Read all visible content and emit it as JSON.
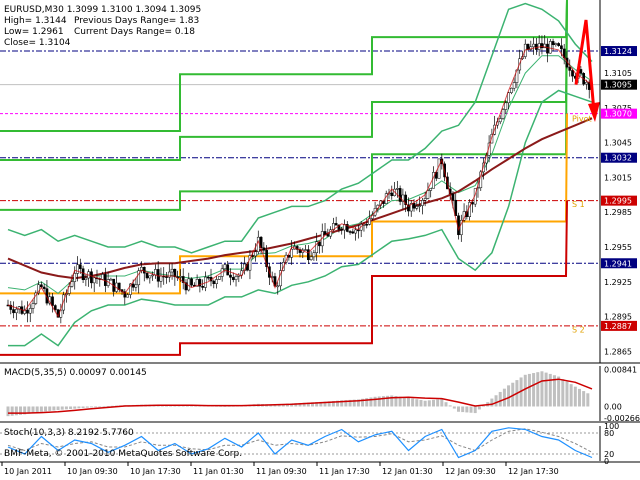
{
  "chart_data": [
    {
      "type": "line",
      "panel": "price",
      "symbol_line": "EURUSD,M30  1.3099 1.3100 1.3094 1.3095",
      "info": {
        "high": "High= 1.3144",
        "low": "Low= 1.2961",
        "close": "Close= 1.3104",
        "prev_range": "Previous Days Range= 1.83",
        "curr_range": "Current Days Range= 0.18"
      },
      "y_ticks": [
        "1.3124",
        "1.3105",
        "1.3095",
        "1.3075",
        "1.3070",
        "1.3045",
        "1.3032",
        "1.3015",
        "1.2995",
        "1.2985",
        "1.2955",
        "1.2941",
        "1.2925",
        "1.2895",
        "1.2887",
        "1.2865"
      ],
      "ylim": [
        1.2855,
        1.3168
      ],
      "levels": [
        {
          "value": 1.3124,
          "color": "#000080",
          "style": "dashdot",
          "tag": "1.3124",
          "box_fill": "#000080",
          "box_text": "#ffffff"
        },
        {
          "value": 1.3095,
          "color": "#c0c0c0",
          "style": "solid",
          "tag": "1.3095",
          "box_fill": "#000000",
          "box_text": "#ffffff"
        },
        {
          "value": 1.307,
          "color": "#ff00ff",
          "style": "dashed",
          "tag": "1.3070",
          "box_fill": "#ff00ff",
          "box_text": "#ffffff"
        },
        {
          "value": 1.3032,
          "color": "#000080",
          "style": "dashdot",
          "tag": "1.3032",
          "box_fill": "#000080",
          "box_text": "#ffffff"
        },
        {
          "value": 1.2995,
          "color": "#cc0000",
          "style": "dashdot",
          "tag": "1.2995",
          "box_fill": "#cc0000",
          "box_text": "#ffffff"
        },
        {
          "value": 1.2941,
          "color": "#000080",
          "style": "dashdot",
          "tag": "1.2941",
          "box_fill": "#000080",
          "box_text": "#ffffff"
        },
        {
          "value": 1.2887,
          "color": "#cc0000",
          "style": "dashdot",
          "tag": "1.2887",
          "box_fill": "#cc0000",
          "box_text": "#ffffff"
        }
      ],
      "pivot_labels": [
        {
          "text": "Pivot",
          "value": 1.3066,
          "color": "#e0a000"
        },
        {
          "text": "S 1",
          "value": 1.2992,
          "color": "#e0a000"
        },
        {
          "text": "S 2",
          "value": 1.2884,
          "color": "#e0a000"
        }
      ],
      "step_series": [
        {
          "color": "#33bb33",
          "segments": [
            [
              0,
              180,
              1.3055
            ],
            [
              180,
              372,
              1.3104
            ],
            [
              372,
              566,
              1.3136
            ]
          ]
        },
        {
          "color": "#33bb33",
          "segments": [
            [
              0,
              180,
              1.303
            ],
            [
              180,
              372,
              1.305
            ],
            [
              372,
              566,
              1.308
            ]
          ]
        },
        {
          "color": "#33bb33",
          "segments": [
            [
              0,
              180,
              1.2987
            ],
            [
              180,
              372,
              1.3003
            ],
            [
              372,
              566,
              1.3035
            ]
          ]
        },
        {
          "color": "#ffa500",
          "segments": [
            [
              0,
              180,
              1.2915
            ],
            [
              180,
              372,
              1.2947
            ],
            [
              372,
              566,
              1.2977
            ]
          ]
        },
        {
          "color": "#cc0000",
          "segments": [
            [
              0,
              180,
              1.2862
            ],
            [
              180,
              372,
              1.2872
            ],
            [
              372,
              566,
              1.293
            ]
          ]
        }
      ],
      "ma": [
        1.2945,
        1.2939,
        1.2933,
        1.293,
        1.2928,
        1.293,
        1.2933,
        1.2937,
        1.294,
        1.2941,
        1.2941,
        1.2943,
        1.2945,
        1.2948,
        1.295,
        1.2952,
        1.2955,
        1.2958,
        1.2962,
        1.2966,
        1.297,
        1.2974,
        1.2979,
        1.2984,
        1.2989,
        1.2993,
        1.2997,
        1.3003,
        1.3012,
        1.3022,
        1.3031,
        1.304,
        1.3048,
        1.3054,
        1.306,
        1.3066
      ],
      "price": [
        1.2905,
        1.29,
        1.292,
        1.2895,
        1.2935,
        1.293,
        1.2925,
        1.2915,
        1.2935,
        1.293,
        1.293,
        1.292,
        1.2925,
        1.2935,
        1.293,
        1.296,
        1.292,
        1.2955,
        1.295,
        1.2965,
        1.2975,
        1.297,
        1.2985,
        1.3005,
        1.299,
        1.3,
        1.303,
        1.297,
        1.3,
        1.305,
        1.309,
        1.3125,
        1.3128,
        1.3125,
        1.3105,
        1.3095
      ],
      "bb_upper": [
        1.297,
        1.2965,
        1.297,
        1.296,
        1.2965,
        1.296,
        1.2955,
        1.2955,
        1.296,
        1.2955,
        1.2955,
        1.295,
        1.2955,
        1.296,
        1.296,
        1.298,
        1.2985,
        1.299,
        1.299,
        1.2995,
        1.3005,
        1.301,
        1.302,
        1.303,
        1.303,
        1.304,
        1.3055,
        1.306,
        1.308,
        1.312,
        1.316,
        1.3165,
        1.316,
        1.315,
        1.313,
        1.3115
      ],
      "bb_lower": [
        1.287,
        1.287,
        1.288,
        1.287,
        1.289,
        1.29,
        1.2905,
        1.2905,
        1.291,
        1.2908,
        1.2905,
        1.2905,
        1.2905,
        1.2912,
        1.2912,
        1.2918,
        1.2915,
        1.2922,
        1.2925,
        1.293,
        1.2938,
        1.294,
        1.295,
        1.296,
        1.2962,
        1.2965,
        1.297,
        1.2945,
        1.2935,
        1.295,
        1.299,
        1.3045,
        1.308,
        1.309,
        1.3085,
        1.308
      ],
      "bb_mid": [
        1.292,
        1.2918,
        1.2925,
        1.2915,
        1.2928,
        1.293,
        1.293,
        1.293,
        1.2935,
        1.2932,
        1.293,
        1.2928,
        1.293,
        1.2936,
        1.2936,
        1.2949,
        1.295,
        1.2956,
        1.2958,
        1.2962,
        1.2972,
        1.2975,
        1.2985,
        1.2995,
        1.2996,
        1.3002,
        1.3012,
        1.3002,
        1.3008,
        1.3035,
        1.3075,
        1.3105,
        1.312,
        1.312,
        1.3108,
        1.3098
      ],
      "arrow_color": "#ff0000"
    },
    {
      "type": "bar",
      "panel": "macd",
      "label": "MACD(5,35,5) 0.00097 0.00145",
      "y_ticks": [
        "0.00841",
        "0.00",
        "-0.00266"
      ],
      "ylim": [
        -0.0033,
        0.0092
      ],
      "values": [
        -0.0022,
        -0.0018,
        -0.0012,
        -0.0008,
        -0.0005,
        -0.0002,
        0.0001,
        0.0003,
        0.0004,
        0.0004,
        0.0003,
        0.0002,
        0.0002,
        0.0001,
        0.0002,
        0.0006,
        0.0004,
        0.0007,
        0.0009,
        0.0011,
        0.0014,
        0.0016,
        0.0022,
        0.0025,
        0.002,
        0.0013,
        0.0017,
        -0.0012,
        -0.0015,
        0.0018,
        0.0048,
        0.0072,
        0.008,
        0.0068,
        0.0045,
        0.0025
      ],
      "signal": [
        -0.0015,
        -0.0015,
        -0.0014,
        -0.0012,
        -0.0009,
        -0.0005,
        -0.0002,
        0.0001,
        0.0002,
        0.0003,
        0.0003,
        0.0003,
        0.0002,
        0.0002,
        0.0002,
        0.0003,
        0.0004,
        0.0005,
        0.0007,
        0.0009,
        0.0011,
        0.0013,
        0.0016,
        0.002,
        0.0021,
        0.0019,
        0.0018,
        0.001,
        0.0001,
        0.0005,
        0.002,
        0.004,
        0.0058,
        0.0062,
        0.0055,
        0.004
      ],
      "bar_color": "#c0c0c0",
      "signal_color": "#cc0000"
    },
    {
      "type": "line",
      "panel": "stoch",
      "label": "Stoch(10,3,3) 8.2192 5.7760",
      "y_ticks": [
        "100",
        "80",
        "20",
        "0"
      ],
      "ylim": [
        0,
        100
      ],
      "main": [
        40,
        20,
        70,
        30,
        60,
        50,
        25,
        45,
        70,
        30,
        50,
        20,
        35,
        65,
        40,
        80,
        20,
        60,
        45,
        70,
        90,
        55,
        75,
        85,
        30,
        70,
        90,
        10,
        30,
        85,
        95,
        90,
        70,
        60,
        30,
        10
      ],
      "signal": [
        45,
        30,
        50,
        40,
        50,
        55,
        40,
        40,
        55,
        45,
        45,
        35,
        32,
        45,
        45,
        60,
        45,
        50,
        45,
        55,
        72,
        68,
        70,
        78,
        55,
        60,
        72,
        45,
        30,
        60,
        85,
        92,
        82,
        70,
        50,
        25
      ],
      "main_color": "#1e90ff",
      "signal_color": "#888888"
    }
  ],
  "x_axis": [
    "10 Jan 2011",
    "10 Jan 09:30",
    "10 Jan 17:30",
    "11 Jan 01:30",
    "11 Jan 09:30",
    "11 Jan 17:30",
    "12 Jan 01:30",
    "12 Jan 09:30",
    "12 Jan 17:30"
  ],
  "copyright": "BMF-Meta, © 2001-2010 MetaQuotes Software Corp."
}
